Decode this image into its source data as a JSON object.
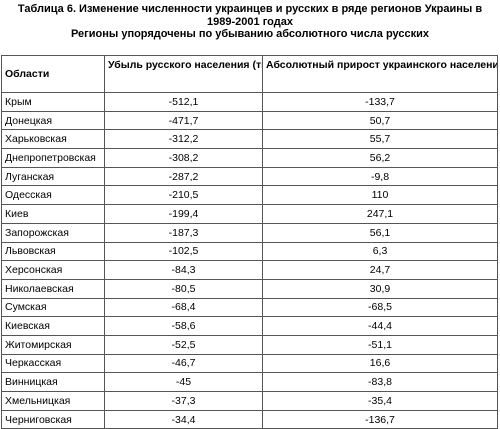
{
  "caption": {
    "line1": "Таблица 6. Изменение численности украинцев и русских в ряде регионов Украины в",
    "line2": "1989-2001 годах",
    "line3": "Регионы упорядочены по убыванию абсолютного числа русских"
  },
  "table": {
    "headers": {
      "region": "Области",
      "russian_loss": "Убыль русского населения (тысяч человек)",
      "ukrainian_growth": "Абсолютный прирост украинского населения (тысяч человек)"
    },
    "rows": [
      {
        "region": "Крым",
        "russian_loss": "-512,1",
        "ukrainian_growth": "-133,7"
      },
      {
        "region": "Донецкая",
        "russian_loss": "-471,7",
        "ukrainian_growth": "50,7"
      },
      {
        "region": "Харьковская",
        "russian_loss": "-312,2",
        "ukrainian_growth": "55,7"
      },
      {
        "region": "Днепропетровская",
        "russian_loss": "-308,2",
        "ukrainian_growth": "56,2"
      },
      {
        "region": "Луганская",
        "russian_loss": "-287,2",
        "ukrainian_growth": "-9,8"
      },
      {
        "region": "Одесская",
        "russian_loss": "-210,5",
        "ukrainian_growth": "110"
      },
      {
        "region": "Киев",
        "russian_loss": "-199,4",
        "ukrainian_growth": "247,1"
      },
      {
        "region": "Запорожская",
        "russian_loss": "-187,3",
        "ukrainian_growth": "56,1"
      },
      {
        "region": "Львовская",
        "russian_loss": "-102,5",
        "ukrainian_growth": "6,3"
      },
      {
        "region": "Херсонская",
        "russian_loss": "-84,3",
        "ukrainian_growth": "24,7"
      },
      {
        "region": "Николаевская",
        "russian_loss": "-80,5",
        "ukrainian_growth": "30,9"
      },
      {
        "region": "Сумская",
        "russian_loss": "-68,4",
        "ukrainian_growth": "-68,5"
      },
      {
        "region": "Киевская",
        "russian_loss": "-58,6",
        "ukrainian_growth": "-44,4"
      },
      {
        "region": "Житомирская",
        "russian_loss": "-52,5",
        "ukrainian_growth": "-51,1"
      },
      {
        "region": "Черкасская",
        "russian_loss": "-46,7",
        "ukrainian_growth": "16,6"
      },
      {
        "region": "Винницкая",
        "russian_loss": "-45",
        "ukrainian_growth": "-83,8"
      },
      {
        "region": "Хмельницкая",
        "russian_loss": "-37,3",
        "ukrainian_growth": "-35,4"
      },
      {
        "region": "Черниговская",
        "russian_loss": "-34,4",
        "ukrainian_growth": "-136,7"
      }
    ]
  }
}
